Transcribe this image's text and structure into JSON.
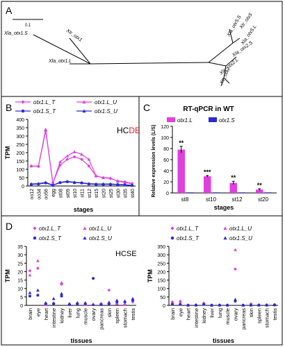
{
  "panel_labels": {
    "a": "A",
    "b": "B",
    "c": "C",
    "d": "D"
  },
  "colors": {
    "L": "#e040e0",
    "S": "#2a2ad8",
    "axis": "#000000",
    "grid": "#bbbbbb",
    "tree": "#000000"
  },
  "chart_data": [
    {
      "id": "panel-A",
      "type": "other",
      "scale_label": "0.1",
      "leaves": [
        "Xla_otx1.S",
        "Xla_otx1.L",
        "Xtr_otx1",
        "Xtr_otx5",
        "Xla_otx5.S",
        "Xla_otx5.L",
        "Xla_otx2.S",
        "Xla_otx2.L",
        "Xtr_otx2"
      ]
    },
    {
      "id": "panel-B",
      "type": "line",
      "tag": "HC",
      "tag2": "DE",
      "xlabel": "stages",
      "ylabel": "TPM",
      "ylim": [
        0,
        400
      ],
      "yticks": [
        0,
        50,
        100,
        150,
        200,
        250,
        300,
        350,
        400
      ],
      "categories": [
        "oo12",
        "oo34",
        "oo56",
        "egg",
        "st08",
        "st09",
        "st10",
        "st11",
        "st12",
        "st15",
        "st20",
        "st25",
        "st30",
        "st35",
        "st40"
      ],
      "series": [
        {
          "name": "otx1.L_T",
          "marker": "diamond",
          "color": "#e040e0",
          "values": [
            120,
            118,
            330,
            18,
            125,
            160,
            175,
            160,
            120,
            60,
            50,
            45,
            30,
            25,
            15
          ]
        },
        {
          "name": "otx1.L_U",
          "marker": "triangle",
          "color": "#e040e0",
          "values": [
            120,
            120,
            340,
            15,
            145,
            180,
            205,
            190,
            160,
            60,
            50,
            48,
            28,
            22,
            12
          ]
        },
        {
          "name": "otx1.S_T",
          "marker": "circle",
          "color": "#2a2ad8",
          "values": [
            10,
            12,
            18,
            4,
            20,
            25,
            20,
            18,
            12,
            10,
            10,
            10,
            8,
            6,
            3
          ]
        },
        {
          "name": "otx1.S_U",
          "marker": "triangle",
          "color": "#2a2ad8",
          "values": [
            12,
            14,
            22,
            5,
            22,
            28,
            22,
            20,
            14,
            12,
            12,
            12,
            10,
            8,
            4
          ]
        }
      ]
    },
    {
      "id": "panel-C",
      "type": "bar",
      "title": "RT-qPCR in WT",
      "xlabel": "stages",
      "ylabel": "Relative expression levels (L/S)",
      "ylim": [
        0,
        120
      ],
      "yticks": [
        0,
        20,
        40,
        60,
        80,
        100,
        120
      ],
      "categories": [
        "st8",
        "st10",
        "st12",
        "st20"
      ],
      "significance": [
        "**",
        "***",
        "**",
        "**"
      ],
      "series": [
        {
          "name": "otx1.L",
          "color": "#e040e0",
          "values": [
            78,
            30,
            18,
            6
          ],
          "errors": [
            6,
            1.5,
            3,
            1.5
          ]
        },
        {
          "name": "otx1.S",
          "color": "#2a2ad8",
          "values": [
            1,
            1,
            1,
            1
          ]
        }
      ]
    },
    {
      "id": "panel-D-left",
      "type": "scatter",
      "tag": "HCSE",
      "xlabel": "tissues",
      "ylabel": "TPM",
      "ylim": [
        0,
        35
      ],
      "yticks": [
        0,
        5,
        10,
        15,
        20,
        25,
        30,
        35
      ],
      "categories": [
        "brain",
        "eye",
        "heart",
        "intestine",
        "kidney",
        "liver",
        "lung",
        "muscle",
        "ovary",
        "pancreas",
        "skin",
        "spleen",
        "stomach",
        "testis"
      ],
      "series": [
        {
          "name": "otx1.L_T",
          "marker": "diamond",
          "color": "#e040e0",
          "values": [
            20.5,
            22,
            0.5,
            1,
            12.5,
            0.5,
            1,
            0.5,
            0.5,
            1,
            9,
            1,
            0.5,
            2
          ]
        },
        {
          "name": "otx1.L_U",
          "marker": "triangle",
          "color": "#e040e0",
          "values": [
            18,
            26.5,
            0.5,
            1.5,
            13.5,
            0.5,
            1.5,
            0.5,
            0.5,
            1,
            2,
            1,
            0.5,
            3.5
          ]
        },
        {
          "name": "otx1.S_T",
          "marker": "circle",
          "color": "#2a2ad8",
          "values": [
            5.5,
            6,
            1,
            1,
            5.5,
            0.5,
            1,
            1,
            16,
            0.5,
            1,
            2,
            2,
            3
          ]
        },
        {
          "name": "otx1.S_U",
          "marker": "triangle",
          "color": "#2a2ad8",
          "values": [
            7.5,
            9,
            1.5,
            4,
            7,
            1,
            1.5,
            1.5,
            0.5,
            0.5,
            1.5,
            3,
            2.5,
            4
          ]
        }
      ]
    },
    {
      "id": "panel-D-right",
      "type": "scatter",
      "xlabel": "tissues",
      "ylabel": "TPM",
      "ylim": [
        0,
        350
      ],
      "yticks": [
        0,
        50,
        100,
        150,
        200,
        250,
        300,
        350
      ],
      "categories": [
        "brain",
        "eye",
        "heart",
        "intestine",
        "kidney",
        "liver",
        "lung",
        "muscle",
        "ovary",
        "pancreas",
        "skin",
        "spleen",
        "stomach",
        "testis"
      ],
      "series": [
        {
          "name": "otx1.L_T",
          "marker": "diamond",
          "color": "#e040e0",
          "values": [
            20,
            22,
            1,
            1,
            12,
            1,
            1,
            1,
            215,
            1,
            9,
            1,
            1,
            2
          ]
        },
        {
          "name": "otx1.L_U",
          "marker": "triangle",
          "color": "#e040e0",
          "values": [
            18,
            26,
            1,
            2,
            13,
            1,
            2,
            1,
            330,
            1,
            2,
            1,
            1,
            3
          ]
        },
        {
          "name": "otx1.S_T",
          "marker": "circle",
          "color": "#2a2ad8",
          "values": [
            6,
            6,
            1,
            1,
            6,
            1,
            1,
            1,
            25,
            1,
            1,
            2,
            2,
            3
          ]
        },
        {
          "name": "otx1.S_U",
          "marker": "triangle",
          "color": "#2a2ad8",
          "values": [
            7,
            9,
            2,
            4,
            7,
            1,
            2,
            2,
            35,
            1,
            2,
            3,
            3,
            4
          ]
        }
      ]
    }
  ]
}
